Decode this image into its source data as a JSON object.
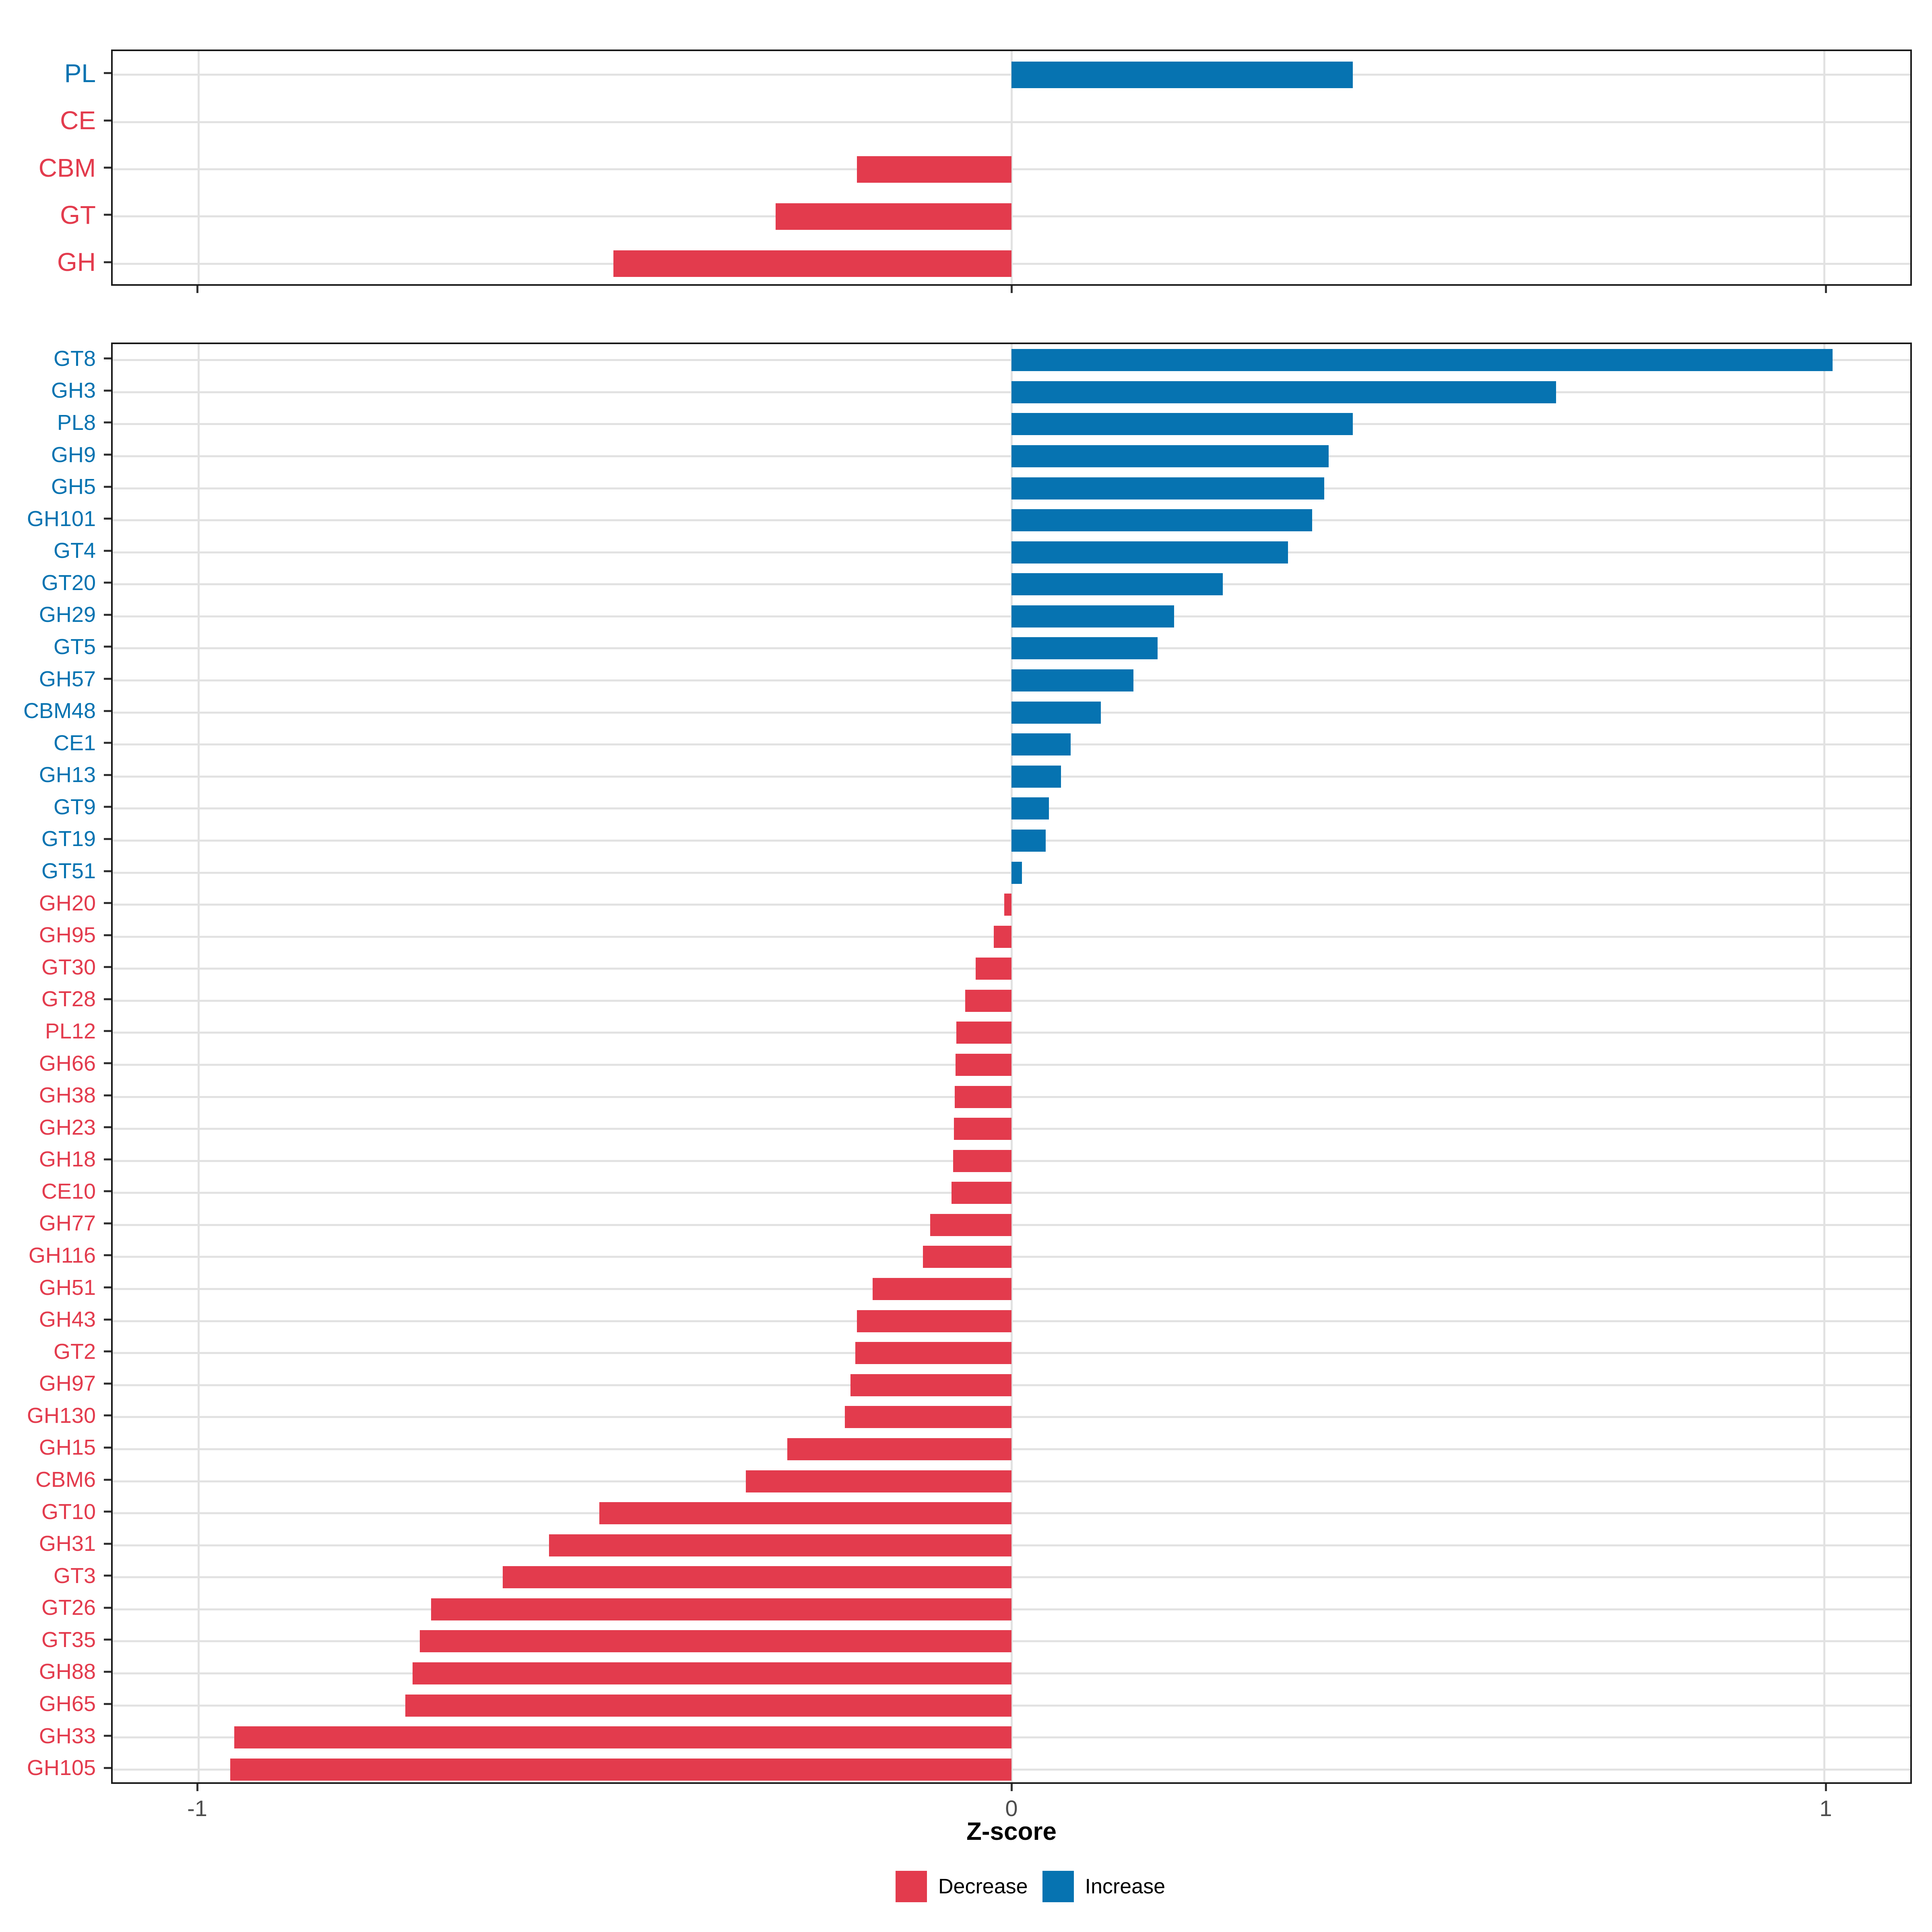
{
  "colors": {
    "increase": "#0673B1",
    "decrease": "#E33B4D",
    "grid": "#E2E2E2",
    "axis_text": "#4D4D4D",
    "tick_mark": "#333333",
    "panel_border": "#1A1A1A"
  },
  "x_axis": {
    "label": "Z-score",
    "ticks": [
      "-1",
      "0",
      "1"
    ],
    "tick_values": [
      -1,
      0,
      1
    ],
    "xlim": [
      -1.106,
      1.106
    ]
  },
  "legend": {
    "items": [
      {
        "label": "Decrease",
        "color_key": "decrease"
      },
      {
        "label": "Increase",
        "color_key": "increase"
      }
    ]
  },
  "chart_data": [
    {
      "type": "bar",
      "orientation": "horizontal",
      "panel": "cazyme-class-summary",
      "xlabel": "Z-score",
      "xlim": [
        -1.106,
        1.106
      ],
      "grid": "on",
      "categories": [
        "PL",
        "CE",
        "CBM",
        "GT",
        "GH"
      ],
      "values": [
        0.42,
        0.0,
        -0.19,
        -0.29,
        -0.49
      ],
      "directions": [
        "increase",
        "decrease",
        "decrease",
        "decrease",
        "decrease"
      ]
    },
    {
      "type": "bar",
      "orientation": "horizontal",
      "panel": "cazyme-family-detail",
      "xlabel": "Z-score",
      "xlim": [
        -1.106,
        1.106
      ],
      "grid": "on",
      "categories": [
        "GT8",
        "GH3",
        "PL8",
        "GH9",
        "GH5",
        "GH101",
        "GT4",
        "GT20",
        "GH29",
        "GT5",
        "GH57",
        "CBM48",
        "CE1",
        "GH13",
        "GT9",
        "GT19",
        "GT51",
        "GH20",
        "GH95",
        "GT30",
        "GT28",
        "PL12",
        "GH66",
        "GH38",
        "GH23",
        "GH18",
        "CE10",
        "GH77",
        "GH116",
        "GH51",
        "GH43",
        "GT2",
        "GH97",
        "GH130",
        "GH15",
        "CBM6",
        "GT10",
        "GH31",
        "GT3",
        "GT26",
        "GT35",
        "GH88",
        "GH65",
        "GH33",
        "GH105"
      ],
      "values": [
        1.01,
        0.67,
        0.42,
        0.39,
        0.385,
        0.37,
        0.34,
        0.26,
        0.2,
        0.18,
        0.15,
        0.11,
        0.073,
        0.061,
        0.046,
        0.042,
        0.013,
        -0.009,
        -0.022,
        -0.044,
        -0.057,
        -0.068,
        -0.069,
        -0.07,
        -0.071,
        -0.072,
        -0.074,
        -0.1,
        -0.109,
        -0.171,
        -0.19,
        -0.192,
        -0.198,
        -0.205,
        -0.276,
        -0.327,
        -0.507,
        -0.569,
        -0.626,
        -0.714,
        -0.728,
        -0.737,
        -0.746,
        -0.956,
        -0.961
      ],
      "directions": [
        "increase",
        "increase",
        "increase",
        "increase",
        "increase",
        "increase",
        "increase",
        "increase",
        "increase",
        "increase",
        "increase",
        "increase",
        "increase",
        "increase",
        "increase",
        "increase",
        "increase",
        "decrease",
        "decrease",
        "decrease",
        "decrease",
        "decrease",
        "decrease",
        "decrease",
        "decrease",
        "decrease",
        "decrease",
        "decrease",
        "decrease",
        "decrease",
        "decrease",
        "decrease",
        "decrease",
        "decrease",
        "decrease",
        "decrease",
        "decrease",
        "decrease",
        "decrease",
        "decrease",
        "decrease",
        "decrease",
        "decrease",
        "decrease",
        "decrease"
      ]
    }
  ]
}
